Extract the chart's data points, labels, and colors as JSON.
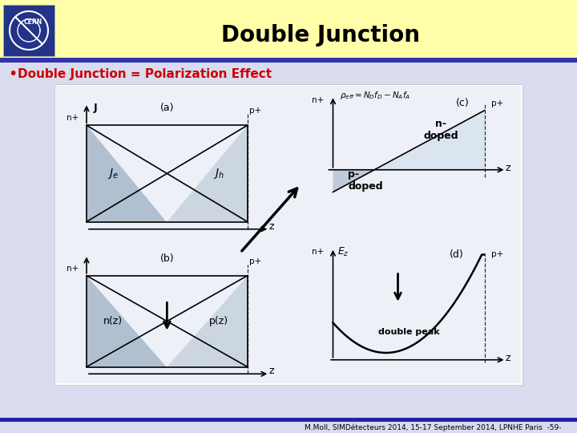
{
  "title": "Double Junction",
  "bullet_text": "Double Junction = Polarization Effect",
  "footer_text": "M.Moll, SIMDétecteurs 2014, 15-17 September 2014, LPNHE Paris  -59-",
  "header_bg": "#FFFFAA",
  "header_stripe": "#3333AA",
  "slide_bg": "#D8DCEE",
  "panel_bg": "#FFFFFF",
  "inner_bg": "#EEF0F8",
  "bullet_color": "#CC0000",
  "footer_bar_color": "#2222AA",
  "tri_dark": "#AABBCC",
  "tri_light": "#C8D4DF",
  "tri_lightest": "#D8E4EE"
}
